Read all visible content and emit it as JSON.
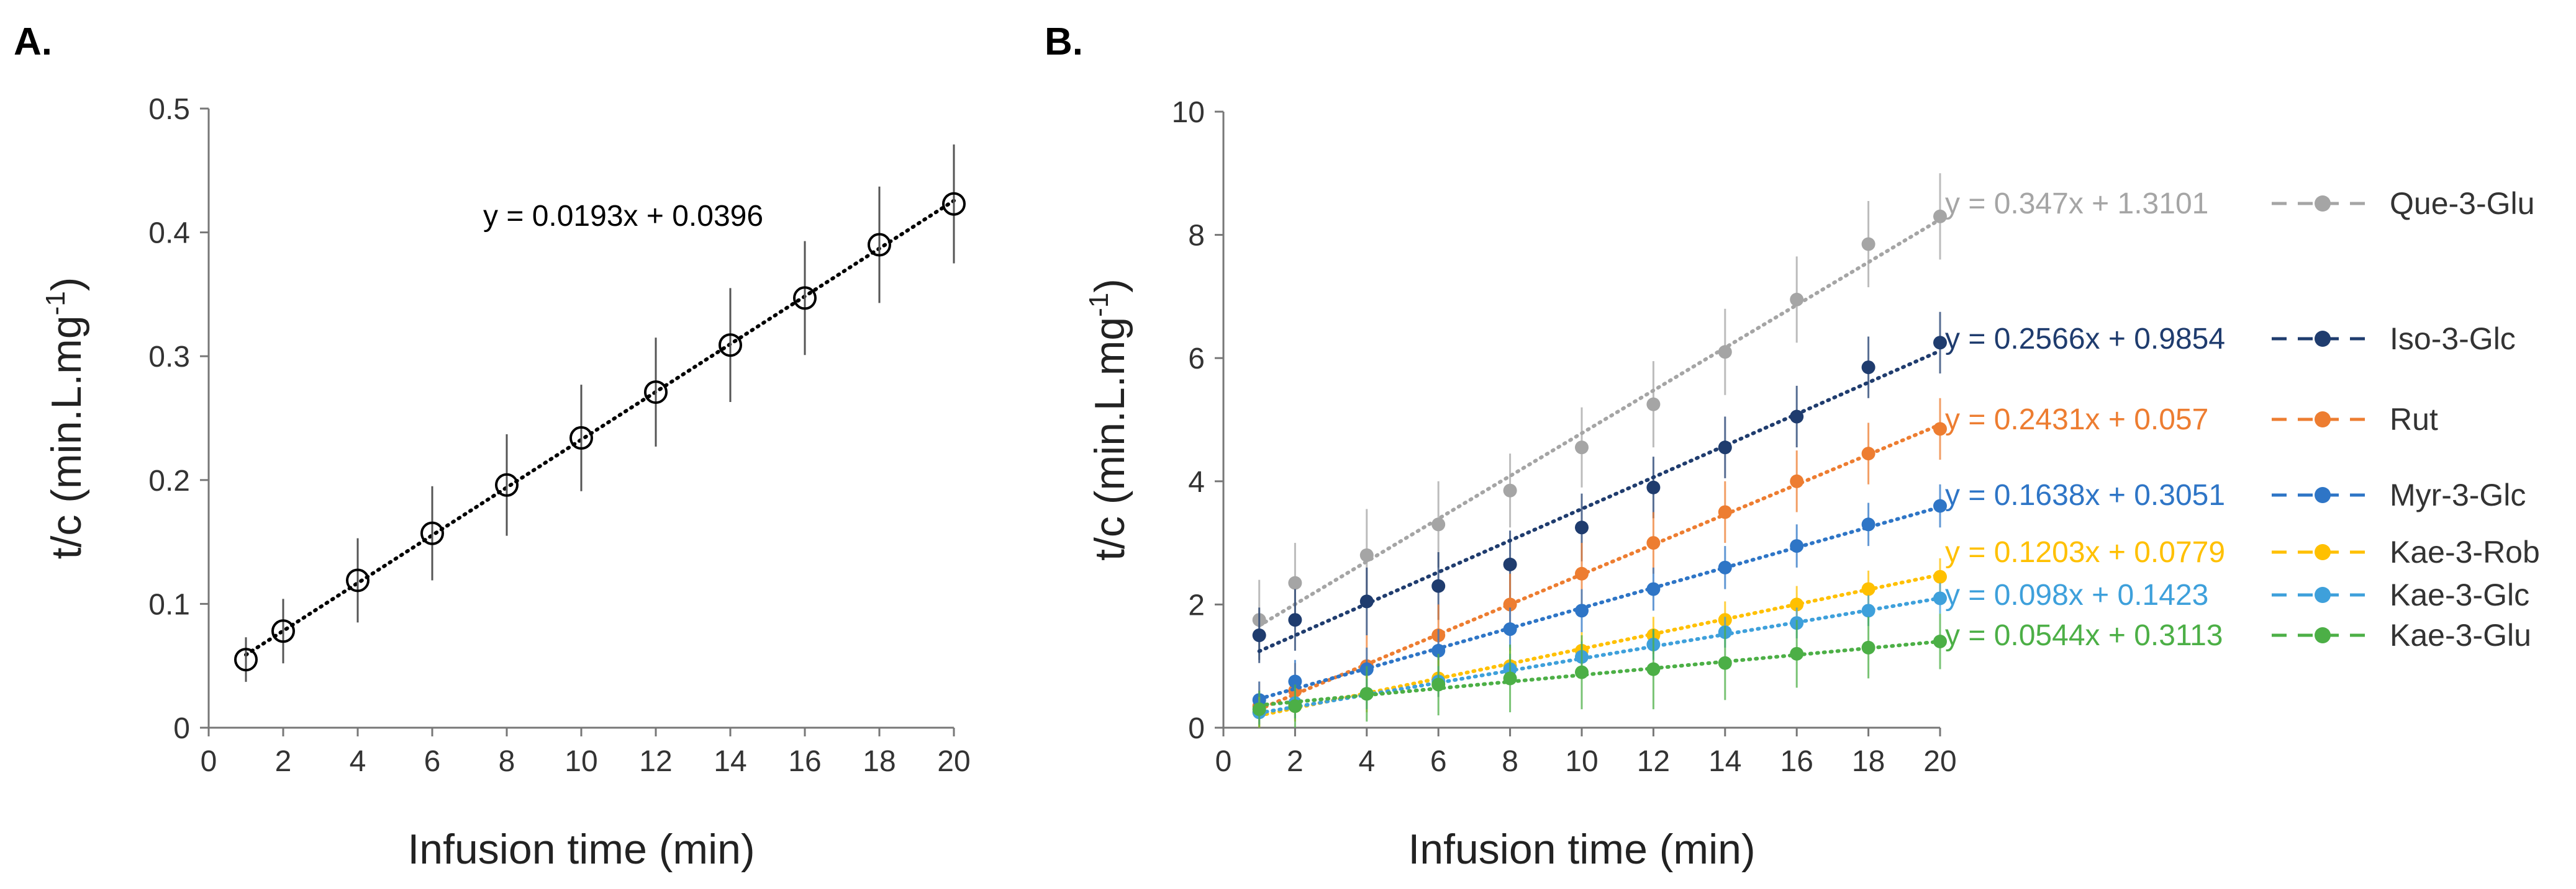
{
  "chart_data": [
    {
      "panel_label": "A.",
      "type": "scatter",
      "xlabel": "Infusion time (min)",
      "ylabel": "t/c (min.L.mg",
      "ylabel_sup": "-1",
      "ylabel_close": ")",
      "xlim": [
        0,
        20
      ],
      "ylim": [
        0,
        0.5
      ],
      "xticks": [
        0,
        2,
        4,
        6,
        8,
        10,
        12,
        14,
        16,
        18,
        20
      ],
      "yticks": [
        0,
        0.1,
        0.2,
        0.3,
        0.4,
        0.5
      ],
      "ytick_labels": [
        "0",
        "0.1",
        "0.2",
        "0.3",
        "0.4",
        "0.5"
      ],
      "grid": false,
      "series": [
        {
          "name": "t/c",
          "color": "#000000",
          "marker": "open-circle",
          "x": [
            1,
            2,
            4,
            6,
            8,
            10,
            12,
            14,
            16,
            18,
            20
          ],
          "y": [
            0.055,
            0.078,
            0.119,
            0.157,
            0.196,
            0.234,
            0.271,
            0.309,
            0.347,
            0.39,
            0.423
          ],
          "err": [
            0.018,
            0.026,
            0.034,
            0.038,
            0.041,
            0.043,
            0.044,
            0.046,
            0.046,
            0.047,
            0.048
          ],
          "trendline": {
            "slope": 0.0193,
            "intercept": 0.0396,
            "x_from": 1,
            "x_to": 20
          },
          "equation": "y = 0.0193x + 0.0396"
        }
      ]
    },
    {
      "panel_label": "B.",
      "type": "scatter",
      "xlabel": "Infusion time (min)",
      "ylabel": "t/c (min.L.mg",
      "ylabel_sup": "-1",
      "ylabel_close": ")",
      "xlim": [
        0,
        20
      ],
      "ylim": [
        0,
        10
      ],
      "xticks": [
        0,
        2,
        4,
        6,
        8,
        10,
        12,
        14,
        16,
        18,
        20
      ],
      "yticks": [
        0,
        2,
        4,
        6,
        8,
        10
      ],
      "ytick_labels": [
        "0",
        "2",
        "4",
        "6",
        "8",
        "10"
      ],
      "grid": false,
      "legend_position": "right",
      "series": [
        {
          "name": "Que-3-Glu",
          "color": "#a5a5a5",
          "equation": "y = 0.347x + 1.3101",
          "trendline": {
            "slope": 0.347,
            "intercept": 1.3101,
            "x_from": 1,
            "x_to": 20
          },
          "x": [
            1,
            2,
            4,
            6,
            8,
            10,
            12,
            14,
            16,
            18,
            20
          ],
          "y": [
            1.75,
            2.35,
            2.8,
            3.3,
            3.85,
            4.55,
            5.25,
            6.1,
            6.95,
            7.85,
            8.3
          ],
          "err": [
            0.65,
            0.65,
            0.75,
            0.7,
            0.6,
            0.65,
            0.7,
            0.7,
            0.7,
            0.7,
            0.7
          ]
        },
        {
          "name": "Iso-3-Glc",
          "color": "#1f3c6e",
          "equation": "y = 0.2566x + 0.9854",
          "trendline": {
            "slope": 0.2566,
            "intercept": 0.9854,
            "x_from": 1,
            "x_to": 20
          },
          "x": [
            1,
            2,
            4,
            6,
            8,
            10,
            12,
            14,
            16,
            18,
            20
          ],
          "y": [
            1.5,
            1.75,
            2.05,
            2.3,
            2.65,
            3.25,
            3.9,
            4.55,
            5.05,
            5.85,
            6.25
          ],
          "err": [
            0.45,
            0.5,
            0.55,
            0.55,
            0.55,
            0.55,
            0.5,
            0.5,
            0.5,
            0.5,
            0.5
          ]
        },
        {
          "name": "Rut",
          "color": "#ed7d31",
          "equation": "y = 0.2431x + 0.057",
          "trendline": {
            "slope": 0.2431,
            "intercept": 0.057,
            "x_from": 1,
            "x_to": 20
          },
          "x": [
            1,
            2,
            4,
            6,
            8,
            10,
            12,
            14,
            16,
            18,
            20
          ],
          "y": [
            0.35,
            0.6,
            1.0,
            1.5,
            2.0,
            2.5,
            3.0,
            3.5,
            4.0,
            4.45,
            4.85
          ],
          "err": [
            0.4,
            0.45,
            0.5,
            0.5,
            0.5,
            0.5,
            0.5,
            0.5,
            0.5,
            0.5,
            0.5
          ]
        },
        {
          "name": "Myr-3-Glc",
          "color": "#2e75c6",
          "equation": "y = 0.1638x + 0.3051",
          "trendline": {
            "slope": 0.1638,
            "intercept": 0.3051,
            "x_from": 1,
            "x_to": 20
          },
          "x": [
            1,
            2,
            4,
            6,
            8,
            10,
            12,
            14,
            16,
            18,
            20
          ],
          "y": [
            0.45,
            0.75,
            0.95,
            1.25,
            1.6,
            1.9,
            2.25,
            2.6,
            2.95,
            3.3,
            3.6
          ],
          "err": [
            0.3,
            0.35,
            0.35,
            0.35,
            0.35,
            0.35,
            0.35,
            0.35,
            0.35,
            0.35,
            0.35
          ]
        },
        {
          "name": "Kae-3-Rob",
          "color": "#ffc000",
          "equation": "y = 0.1203x + 0.0779",
          "trendline": {
            "slope": 0.1203,
            "intercept": 0.0779,
            "x_from": 1,
            "x_to": 20
          },
          "x": [
            1,
            2,
            4,
            6,
            8,
            10,
            12,
            14,
            16,
            18,
            20
          ],
          "y": [
            0.25,
            0.35,
            0.55,
            0.8,
            1.0,
            1.25,
            1.5,
            1.75,
            2.0,
            2.25,
            2.45
          ],
          "err": [
            0.25,
            0.25,
            0.3,
            0.3,
            0.3,
            0.3,
            0.3,
            0.3,
            0.3,
            0.3,
            0.3
          ]
        },
        {
          "name": "Kae-3-Glc",
          "color": "#3ea0db",
          "equation": "y = 0.098x + 0.1423",
          "trendline": {
            "slope": 0.098,
            "intercept": 0.1423,
            "x_from": 1,
            "x_to": 20
          },
          "x": [
            1,
            2,
            4,
            6,
            8,
            10,
            12,
            14,
            16,
            18,
            20
          ],
          "y": [
            0.25,
            0.4,
            0.55,
            0.75,
            0.95,
            1.15,
            1.35,
            1.55,
            1.7,
            1.9,
            2.1
          ],
          "err": [
            0.2,
            0.25,
            0.25,
            0.25,
            0.25,
            0.25,
            0.25,
            0.25,
            0.25,
            0.25,
            0.25
          ]
        },
        {
          "name": "Kae-3-Glu",
          "color": "#4caf46",
          "equation": "y = 0.0544x + 0.3113",
          "trendline": {
            "slope": 0.0544,
            "intercept": 0.3113,
            "x_from": 1,
            "x_to": 20
          },
          "x": [
            1,
            2,
            4,
            6,
            8,
            10,
            12,
            14,
            16,
            18,
            20
          ],
          "y": [
            0.3,
            0.35,
            0.55,
            0.7,
            0.8,
            0.9,
            0.95,
            1.05,
            1.2,
            1.3,
            1.4
          ],
          "err": [
            0.3,
            0.35,
            0.45,
            0.5,
            0.55,
            0.6,
            0.65,
            0.6,
            0.55,
            0.5,
            0.45
          ]
        }
      ]
    }
  ]
}
